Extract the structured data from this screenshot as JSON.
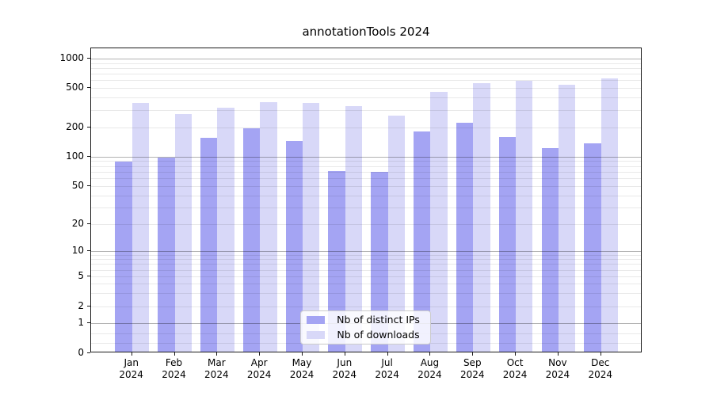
{
  "chart_data": {
    "type": "bar",
    "title": "annotationTools 2024",
    "categories": [
      "Jan",
      "Feb",
      "Mar",
      "Apr",
      "May",
      "Jun",
      "Jul",
      "Aug",
      "Sep",
      "Oct",
      "Nov",
      "Dec"
    ],
    "category_year": "2024",
    "series": [
      {
        "key": "distinct-ips",
        "name": "Nb of distinct IPs",
        "color": "#a4a4f3",
        "values": [
          87,
          96,
          153,
          193,
          142,
          70,
          68,
          177,
          220,
          156,
          120,
          135
        ]
      },
      {
        "key": "downloads",
        "name": "Nb of downloads",
        "color": "#d8d8f8",
        "values": [
          345,
          270,
          310,
          355,
          344,
          320,
          258,
          450,
          550,
          580,
          530,
          610
        ]
      }
    ],
    "y_axis": {
      "scale": "symlog",
      "ticks": [
        0,
        1,
        2,
        5,
        10,
        20,
        50,
        100,
        200,
        500,
        1000
      ],
      "major_gridlines": [
        1,
        10,
        100,
        1000
      ],
      "minor_gridlines": [
        0.33,
        0.67,
        2,
        3,
        4,
        5,
        6,
        7,
        8,
        9,
        20,
        30,
        40,
        50,
        60,
        70,
        80,
        90,
        200,
        300,
        400,
        500,
        600,
        700,
        800,
        900
      ],
      "range": [
        0,
        1200
      ]
    },
    "xlabel": "",
    "ylabel": "",
    "grid": true,
    "legend": {
      "position": "lower-center"
    }
  }
}
